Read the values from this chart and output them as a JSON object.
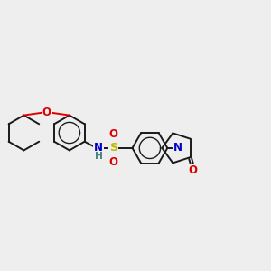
{
  "bg_color": "#eeeeee",
  "bond_color": "#1a1a1a",
  "bond_lw": 1.4,
  "ring_r": 0.65,
  "atom_colors": {
    "O": "#dd0000",
    "N": "#0000cc",
    "S": "#bbbb00",
    "H": "#4a8080"
  },
  "font_size": 8.5,
  "figsize": [
    3.0,
    3.0
  ],
  "dpi": 100,
  "xlim": [
    0,
    10
  ],
  "ylim": [
    2,
    8
  ]
}
